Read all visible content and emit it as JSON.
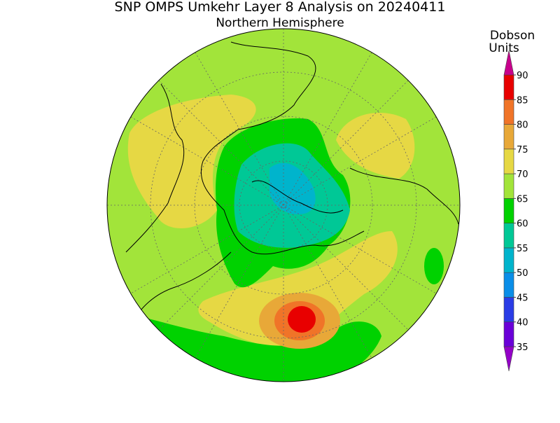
{
  "title": "SNP OMPS Umkehr Layer 8 Analysis on 20240411",
  "subtitle": "Northern Hemisphere",
  "colorbar": {
    "label": [
      "Dobson",
      "Units"
    ],
    "ticks": [
      35,
      40,
      45,
      50,
      55,
      60,
      65,
      70,
      75,
      80,
      85,
      90
    ],
    "colors": [
      "#9400c8",
      "#6a00d8",
      "#2a3ce6",
      "#0a8ee8",
      "#00b4cc",
      "#00c896",
      "#00d200",
      "#a2e43a",
      "#e6d844",
      "#e8a838",
      "#f07428",
      "#e80000",
      "#c8008c"
    ]
  }
}
